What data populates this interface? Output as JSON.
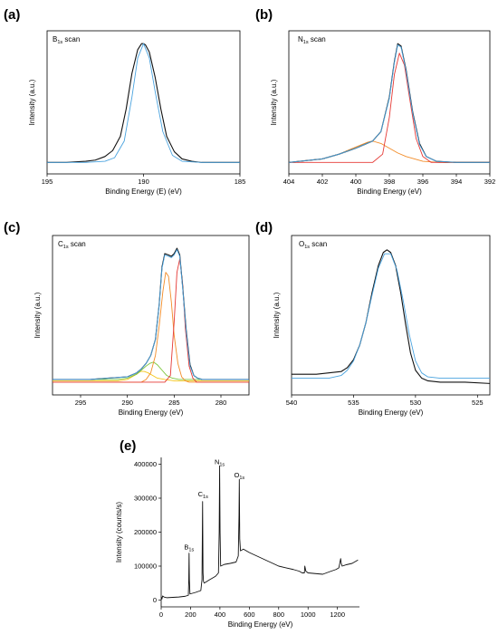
{
  "chart_data": [
    {
      "panel": "(a)",
      "type": "line",
      "title": "B",
      "title_sub": "1s",
      "title_suffix": " scan",
      "xlabel": "Binding Energy (E) (eV)",
      "ylabel": "Intensity (a.u.)",
      "xlim": [
        195,
        185
      ],
      "ylim": [
        0,
        1
      ],
      "xticks": [
        195,
        190,
        185
      ],
      "colors": {
        "data": "#111111",
        "fit": "#4aa3df"
      },
      "series": [
        {
          "role": "data",
          "x": [
            195,
            194,
            193,
            192.5,
            192,
            191.6,
            191.2,
            190.9,
            190.6,
            190.3,
            190.1,
            190.0,
            189.9,
            189.7,
            189.4,
            189.1,
            188.8,
            188.4,
            188.0,
            187.5,
            187,
            186,
            185
          ],
          "y": [
            0.0,
            0.0,
            0.01,
            0.02,
            0.05,
            0.1,
            0.22,
            0.45,
            0.75,
            0.95,
            1.0,
            1.0,
            0.99,
            0.93,
            0.72,
            0.45,
            0.22,
            0.09,
            0.03,
            0.01,
            0.0,
            0.0,
            0.0
          ]
        },
        {
          "role": "fit",
          "x": [
            195,
            193,
            192,
            191.5,
            191,
            190.6,
            190.3,
            190.0,
            189.7,
            189.4,
            189.0,
            188.5,
            188,
            187,
            185
          ],
          "y": [
            0.0,
            0.0,
            0.01,
            0.04,
            0.18,
            0.55,
            0.88,
            1.0,
            0.88,
            0.6,
            0.26,
            0.06,
            0.01,
            0.0,
            0.0
          ]
        }
      ]
    },
    {
      "panel": "(b)",
      "type": "line",
      "title": "N",
      "title_sub": "1s",
      "title_suffix": " scan",
      "xlabel": "Binding Energy (eV)",
      "ylabel": "Intensity (a.u.)",
      "xlim": [
        404,
        392
      ],
      "ylim": [
        0,
        1
      ],
      "xticks": [
        404,
        402,
        400,
        398,
        396,
        394,
        392
      ],
      "colors": {
        "data": "#111111",
        "fit": "#4aa3df",
        "comp1": "#e53935",
        "comp2": "#f28c28"
      },
      "series": [
        {
          "role": "data",
          "x": [
            404,
            402,
            401,
            400,
            399.5,
            399,
            398.5,
            398,
            397.7,
            397.5,
            397.3,
            397.0,
            396.6,
            396.2,
            395.8,
            395.2,
            394,
            392
          ],
          "y": [
            0.0,
            0.03,
            0.07,
            0.12,
            0.15,
            0.18,
            0.26,
            0.55,
            0.85,
            1.0,
            0.98,
            0.78,
            0.42,
            0.16,
            0.05,
            0.01,
            0.0,
            0.0
          ]
        },
        {
          "role": "fit",
          "x": [
            404,
            402,
            401,
            400,
            399.5,
            399,
            398.5,
            398,
            397.7,
            397.5,
            397.3,
            397.0,
            396.6,
            396.2,
            395.8,
            395.2,
            394,
            392
          ],
          "y": [
            0.0,
            0.03,
            0.07,
            0.12,
            0.15,
            0.18,
            0.26,
            0.54,
            0.84,
            0.99,
            0.97,
            0.77,
            0.41,
            0.15,
            0.05,
            0.01,
            0.0,
            0.0
          ]
        },
        {
          "role": "comp1",
          "x": [
            404,
            399,
            398.4,
            398.0,
            397.7,
            397.4,
            397.1,
            396.8,
            396.4,
            396.0,
            395.5,
            392
          ],
          "y": [
            0.0,
            0.0,
            0.07,
            0.38,
            0.74,
            0.92,
            0.82,
            0.55,
            0.2,
            0.05,
            0.0,
            0.0
          ]
        },
        {
          "role": "comp2",
          "x": [
            404,
            402,
            401,
            400,
            399.3,
            399,
            398.5,
            398,
            397.5,
            397,
            396.5,
            396,
            395,
            392
          ],
          "y": [
            0.0,
            0.03,
            0.07,
            0.13,
            0.17,
            0.18,
            0.16,
            0.12,
            0.08,
            0.05,
            0.03,
            0.01,
            0.0,
            0.0
          ]
        }
      ]
    },
    {
      "panel": "(c)",
      "type": "line",
      "title": "C",
      "title_sub": "1s",
      "title_suffix": " scan",
      "xlabel": "Binding Energy (eV)",
      "ylabel": "Intensity (a.u.)",
      "xlim": [
        298,
        277
      ],
      "ylim": [
        0,
        1
      ],
      "xticks": [
        295,
        290,
        285,
        280
      ],
      "colors": {
        "data": "#111111",
        "fit": "#4aa3df",
        "comp1": "#e53935",
        "comp2": "#f28c28",
        "comp3": "#7cc63a",
        "comp4": "#f5c518"
      },
      "series": [
        {
          "role": "data",
          "x": [
            298,
            294,
            292,
            290,
            289,
            288.5,
            288,
            287.5,
            287,
            286.6,
            286.3,
            286.0,
            285.6,
            285.3,
            285.0,
            284.7,
            284.4,
            284.1,
            283.7,
            283.3,
            282.9,
            282.5,
            282,
            281,
            279,
            277
          ],
          "y": [
            0.02,
            0.02,
            0.03,
            0.04,
            0.07,
            0.1,
            0.14,
            0.2,
            0.32,
            0.58,
            0.86,
            0.96,
            0.95,
            0.94,
            0.96,
            1.0,
            0.95,
            0.72,
            0.38,
            0.13,
            0.05,
            0.03,
            0.02,
            0.02,
            0.02,
            0.02
          ]
        },
        {
          "role": "fit",
          "x": [
            298,
            294,
            292,
            290,
            289,
            288.5,
            288,
            287.5,
            287,
            286.6,
            286.3,
            286.0,
            285.6,
            285.3,
            285.0,
            284.7,
            284.4,
            284.1,
            283.7,
            283.3,
            282.9,
            282.5,
            282,
            281,
            279,
            277
          ],
          "y": [
            0.02,
            0.02,
            0.03,
            0.04,
            0.07,
            0.1,
            0.14,
            0.2,
            0.32,
            0.58,
            0.85,
            0.95,
            0.94,
            0.93,
            0.95,
            0.99,
            0.94,
            0.71,
            0.37,
            0.12,
            0.05,
            0.03,
            0.02,
            0.02,
            0.02,
            0.02
          ]
        },
        {
          "role": "comp1",
          "x": [
            298,
            286,
            285.4,
            285.0,
            284.7,
            284.4,
            284.1,
            283.8,
            283.4,
            283.0,
            282.6,
            277
          ],
          "y": [
            0.0,
            0.0,
            0.05,
            0.45,
            0.82,
            0.92,
            0.74,
            0.4,
            0.12,
            0.03,
            0.0,
            0.0
          ]
        },
        {
          "role": "comp2",
          "x": [
            298,
            288.5,
            288,
            287.5,
            287,
            286.6,
            286.2,
            285.9,
            285.6,
            285.3,
            285.0,
            284.6,
            284.2,
            283.8,
            283.4,
            277
          ],
          "y": [
            0.0,
            0.0,
            0.02,
            0.07,
            0.2,
            0.42,
            0.68,
            0.82,
            0.79,
            0.6,
            0.35,
            0.14,
            0.04,
            0.01,
            0.0,
            0.0
          ]
        },
        {
          "role": "comp3",
          "x": [
            298,
            291,
            290,
            289,
            288.5,
            288,
            287.6,
            287.2,
            286.8,
            286.3,
            285.8,
            285.2,
            284.5,
            277
          ],
          "y": [
            0.02,
            0.02,
            0.03,
            0.06,
            0.09,
            0.12,
            0.14,
            0.15,
            0.13,
            0.09,
            0.05,
            0.03,
            0.02,
            0.02
          ]
        },
        {
          "role": "comp4",
          "x": [
            298,
            291,
            290,
            289.5,
            289,
            288.6,
            288.2,
            287.8,
            287.3,
            286.8,
            286,
            285,
            277
          ],
          "y": [
            0.01,
            0.01,
            0.02,
            0.04,
            0.06,
            0.08,
            0.08,
            0.07,
            0.05,
            0.03,
            0.02,
            0.01,
            0.01
          ]
        }
      ]
    },
    {
      "panel": "(d)",
      "type": "line",
      "title": "O",
      "title_sub": "1s",
      "title_suffix": " scan",
      "xlabel": "Binding Energy (eV)",
      "ylabel": "Intensity (a.u.)",
      "xlim": [
        540,
        524
      ],
      "ylim": [
        0,
        1
      ],
      "xticks": [
        540,
        535,
        530,
        525
      ],
      "colors": {
        "data": "#111111",
        "fit": "#4aa3df"
      },
      "series": [
        {
          "role": "data",
          "x": [
            540,
            538,
            537,
            536,
            535.5,
            535,
            534.5,
            534,
            533.5,
            533.0,
            532.6,
            532.3,
            532.0,
            531.6,
            531.2,
            530.8,
            530.4,
            530.0,
            529.5,
            529,
            528,
            526,
            524
          ],
          "y": [
            0.06,
            0.06,
            0.07,
            0.08,
            0.11,
            0.17,
            0.28,
            0.45,
            0.68,
            0.88,
            0.98,
            1.0,
            0.98,
            0.88,
            0.68,
            0.44,
            0.22,
            0.09,
            0.03,
            0.01,
            0.0,
            0.0,
            -0.01
          ]
        },
        {
          "role": "fit",
          "x": [
            540,
            537,
            536,
            535.5,
            535,
            534.5,
            534,
            533.5,
            533.0,
            532.5,
            532.0,
            531.5,
            531.0,
            530.5,
            530.0,
            529.5,
            529,
            528,
            524
          ],
          "y": [
            0.03,
            0.03,
            0.05,
            0.09,
            0.16,
            0.28,
            0.45,
            0.66,
            0.86,
            0.97,
            0.97,
            0.85,
            0.62,
            0.36,
            0.16,
            0.07,
            0.04,
            0.03,
            0.03
          ]
        }
      ]
    },
    {
      "panel": "(e)",
      "type": "line",
      "title": "",
      "xlabel": "Binding Energy (eV)",
      "ylabel": "Intensity (counts/s)",
      "xlim": [
        0,
        1350
      ],
      "ylim": [
        -20000,
        420000
      ],
      "xticks": [
        0,
        200,
        400,
        600,
        800,
        1000,
        1200
      ],
      "yticks": [
        0,
        100000,
        200000,
        300000,
        400000
      ],
      "colors": {
        "data": "#111111"
      },
      "annotations": [
        {
          "label": "B",
          "sub": "1s",
          "x": 190,
          "y": 150000
        },
        {
          "label": "C",
          "sub": "1s",
          "x": 285,
          "y": 305000
        },
        {
          "label": "N",
          "sub": "1s",
          "x": 398,
          "y": 400000
        },
        {
          "label": "O",
          "sub": "1s",
          "x": 532,
          "y": 362000
        }
      ],
      "series": [
        {
          "role": "data",
          "x": [
            0,
            5,
            10,
            20,
            40,
            80,
            120,
            160,
            185,
            188,
            190,
            192,
            196,
            230,
            270,
            278,
            282,
            285,
            288,
            293,
            330,
            370,
            390,
            395,
            398,
            401,
            405,
            430,
            470,
            510,
            525,
            530,
            532,
            535,
            540,
            560,
            600,
            650,
            700,
            750,
            800,
            850,
            900,
            940,
            960,
            975,
            978,
            985,
            1000,
            1050,
            1100,
            1150,
            1190,
            1210,
            1222,
            1226,
            1232,
            1260,
            1300,
            1340
          ],
          "y": [
            10000,
            3000,
            12000,
            9000,
            7000,
            8000,
            9000,
            11000,
            14000,
            60000,
            138000,
            60000,
            18000,
            22000,
            28000,
            60000,
            290000,
            80000,
            55000,
            50000,
            60000,
            70000,
            80000,
            200000,
            395000,
            200000,
            100000,
            105000,
            108000,
            112000,
            130000,
            250000,
            355000,
            180000,
            145000,
            150000,
            140000,
            130000,
            120000,
            110000,
            100000,
            95000,
            90000,
            85000,
            80000,
            80000,
            100000,
            85000,
            80000,
            78000,
            76000,
            84000,
            90000,
            95000,
            122000,
            108000,
            100000,
            104000,
            108000,
            118000
          ]
        }
      ]
    }
  ],
  "labels": {
    "a": "(a)",
    "b": "(b)",
    "c": "(c)",
    "d": "(d)",
    "e": "(e)"
  },
  "peak_labels": {
    "b": "B",
    "c": "C",
    "n": "N",
    "o": "O",
    "sub": "1s"
  },
  "y_tick_labels": [
    "0",
    "100000",
    "200000",
    "300000",
    "400000"
  ]
}
